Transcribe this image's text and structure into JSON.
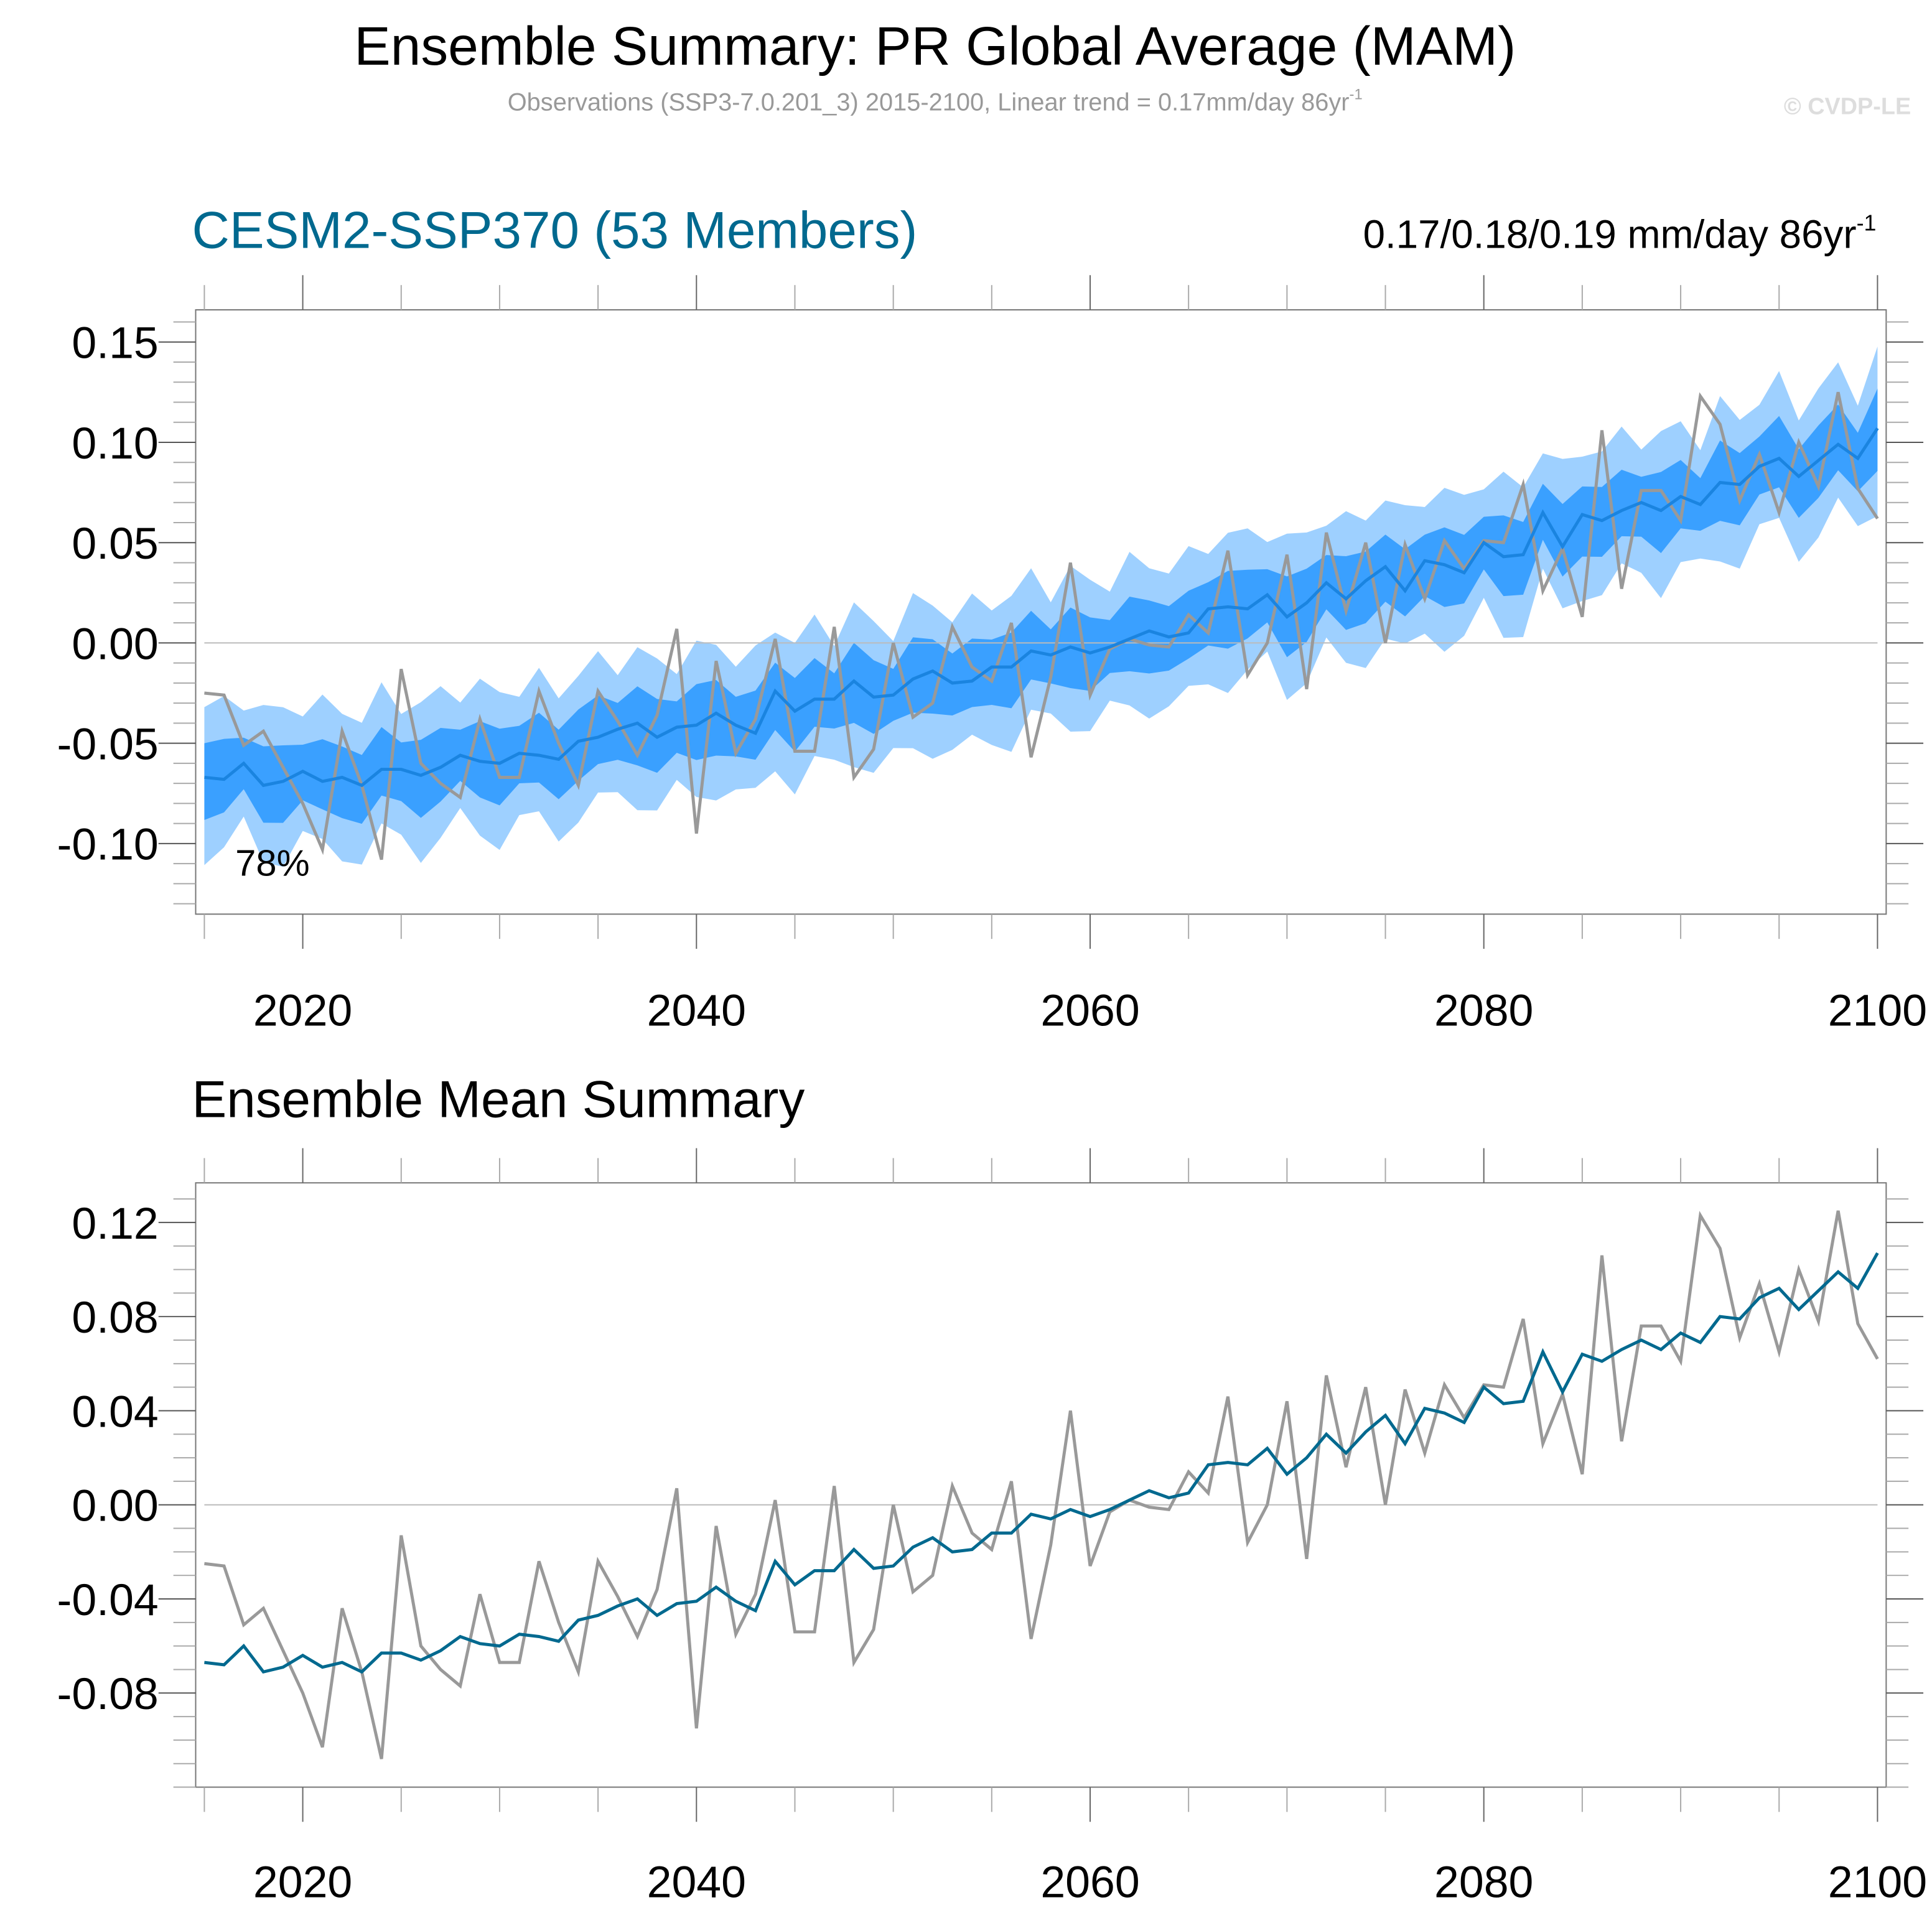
{
  "title": "Ensemble Summary: PR Global Average (MAM)",
  "subtitle": "Observations (SSP3-7.0.201_3) 2015-2100, Linear trend = 0.17mm/day 86yr",
  "subtitle_sup": "-1",
  "copyright": "© CVDP-LE",
  "colors": {
    "outer_band": "#9ed0ff",
    "inner_band": "#3aa0ff",
    "ensemble_mean_top": "#1a84e0",
    "observations": "#999999",
    "ensemble_mean_bottom": "#00698f",
    "model_title": "#00698f"
  },
  "chart_data": [
    {
      "type": "area",
      "title": "CESM2-SSP370 (53 Members)",
      "trend_label": "0.17/0.18/0.19 mm/day 86yr",
      "trend_sup": "-1",
      "annotation": "78%",
      "xlim": [
        2015,
        2100
      ],
      "ylim": [
        -0.135,
        0.165
      ],
      "x_ticks": [
        "2020",
        "2040",
        "2060",
        "2080",
        "2100"
      ],
      "y_ticks": [
        "0.15",
        "0.10",
        "0.05",
        "0.00",
        "-0.05",
        "-0.10"
      ],
      "band_outer_halfwidth": 0.035,
      "band_inner_halfwidth": 0.017,
      "grid": false,
      "zero_line": true
    },
    {
      "type": "line",
      "title": "Ensemble Mean Summary",
      "xlim": [
        2015,
        2100
      ],
      "ylim": [
        -0.12,
        0.138
      ],
      "x_ticks": [
        "2020",
        "2040",
        "2060",
        "2080",
        "2100"
      ],
      "y_ticks": [
        "0.12",
        "0.08",
        "0.04",
        "0.00",
        "-0.04",
        "-0.08"
      ],
      "grid": false,
      "zero_line": true
    }
  ],
  "series": {
    "start_year": 2015,
    "ensemble_mean": [
      -0.067,
      -0.068,
      -0.06,
      -0.071,
      -0.069,
      -0.064,
      -0.069,
      -0.067,
      -0.071,
      -0.063,
      -0.063,
      -0.066,
      -0.062,
      -0.056,
      -0.059,
      -0.06,
      -0.055,
      -0.056,
      -0.058,
      -0.049,
      -0.047,
      -0.043,
      -0.04,
      -0.047,
      -0.042,
      -0.041,
      -0.035,
      -0.041,
      -0.045,
      -0.024,
      -0.034,
      -0.028,
      -0.028,
      -0.019,
      -0.027,
      -0.026,
      -0.018,
      -0.014,
      -0.02,
      -0.019,
      -0.012,
      -0.012,
      -0.004,
      -0.006,
      -0.002,
      -0.005,
      -0.002,
      0.002,
      0.006,
      0.003,
      0.005,
      0.017,
      0.018,
      0.017,
      0.024,
      0.013,
      0.02,
      0.03,
      0.022,
      0.031,
      0.038,
      0.026,
      0.041,
      0.039,
      0.035,
      0.05,
      0.043,
      0.044,
      0.065,
      0.048,
      0.064,
      0.061,
      0.066,
      0.07,
      0.066,
      0.073,
      0.069,
      0.08,
      0.079,
      0.088,
      0.092,
      0.083,
      0.091,
      0.099,
      0.092,
      0.107
    ],
    "observations": [
      -0.025,
      -0.026,
      -0.051,
      -0.044,
      -0.062,
      -0.08,
      -0.103,
      -0.044,
      -0.071,
      -0.108,
      -0.013,
      -0.06,
      -0.07,
      -0.077,
      -0.038,
      -0.067,
      -0.067,
      -0.024,
      -0.05,
      -0.071,
      -0.024,
      -0.039,
      -0.056,
      -0.036,
      0.007,
      -0.095,
      -0.009,
      -0.055,
      -0.038,
      0.002,
      -0.054,
      -0.054,
      0.008,
      -0.067,
      -0.053,
      0.0,
      -0.037,
      -0.03,
      0.008,
      -0.012,
      -0.019,
      0.01,
      -0.057,
      -0.017,
      0.04,
      -0.026,
      -0.003,
      0.002,
      -0.001,
      -0.002,
      0.014,
      0.005,
      0.046,
      -0.016,
      0.0,
      0.044,
      -0.023,
      0.055,
      0.016,
      0.05,
      0.0,
      0.049,
      0.022,
      0.051,
      0.037,
      0.051,
      0.05,
      0.079,
      0.026,
      0.047,
      0.013,
      0.106,
      0.027,
      0.076,
      0.076,
      0.061,
      0.123,
      0.109,
      0.071,
      0.094,
      0.065,
      0.1,
      0.078,
      0.125,
      0.077,
      0.062
    ]
  }
}
